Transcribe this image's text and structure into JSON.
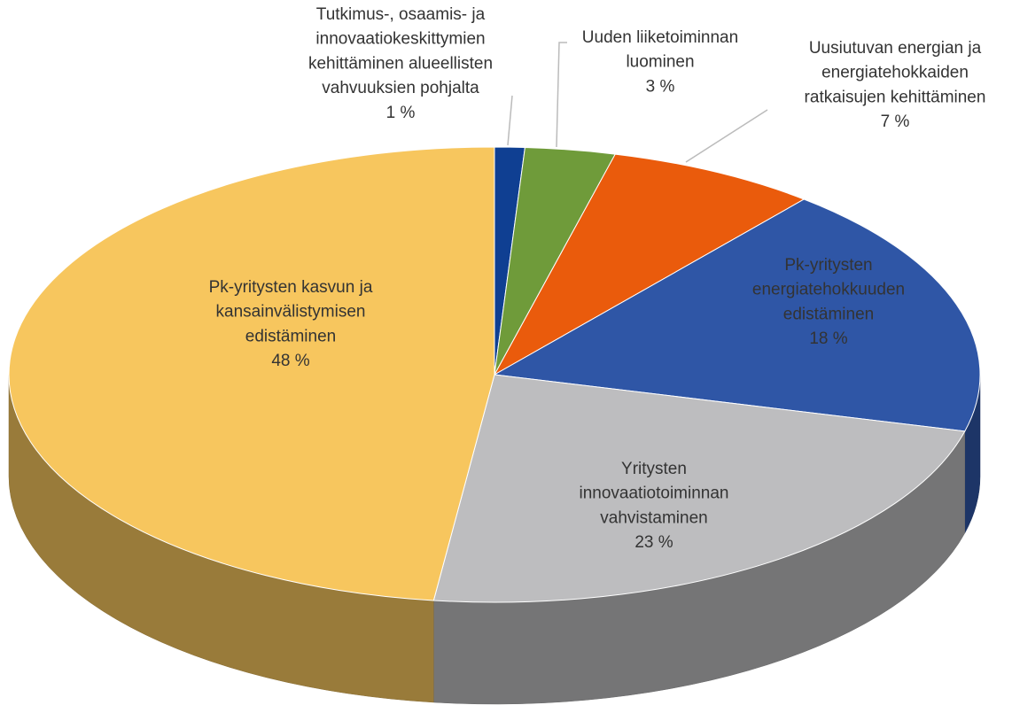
{
  "chart_data": {
    "type": "pie3d",
    "categories": [
      "Tutkimus-, osaamis- ja innovaatiokeskittymien kehittäminen alueellisten vahvuuksien pohjalta",
      "Uuden liiketoiminnan luominen",
      "Uusiutuvan energian ja energiatehokkaiden ratkaisujen kehittäminen",
      "Pk-yritysten energiatehokkuuden edistäminen",
      "Yritysten innovaatiotoiminnan vahvistaminen",
      "Pk-yritysten kasvun ja kansainvälistymisen edistäminen"
    ],
    "values": [
      1,
      3,
      7,
      18,
      23,
      48
    ],
    "value_labels": [
      "1 %",
      "3 %",
      "7 %",
      "18 %",
      "23 %",
      "48 %"
    ],
    "colors": [
      "#0f3f92",
      "#6f9b3a",
      "#ea5b0c",
      "#2f56a6",
      "#bdbdbf",
      "#f7c65e"
    ]
  }
}
